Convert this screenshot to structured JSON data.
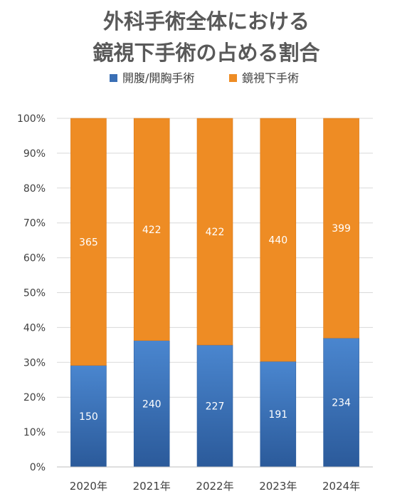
{
  "chart_data": {
    "type": "bar",
    "stacked": "percent",
    "title_lines": [
      "外科手術全体における",
      "鏡視下手術の占める割合"
    ],
    "categories": [
      "2020年",
      "2021年",
      "2022年",
      "2023年",
      "2024年"
    ],
    "series": [
      {
        "name": "開腹/開胸手術",
        "values": [
          150,
          240,
          227,
          191,
          234
        ],
        "color": "#3a6fb5"
      },
      {
        "name": "鏡視下手術",
        "values": [
          365,
          422,
          422,
          440,
          399
        ],
        "color": "#ee8c24"
      }
    ],
    "y_ticks": [
      "0%",
      "10%",
      "20%",
      "30%",
      "40%",
      "50%",
      "60%",
      "70%",
      "80%",
      "90%",
      "100%"
    ],
    "ylim": [
      0,
      100
    ],
    "grid": true,
    "legend_position": "top"
  }
}
